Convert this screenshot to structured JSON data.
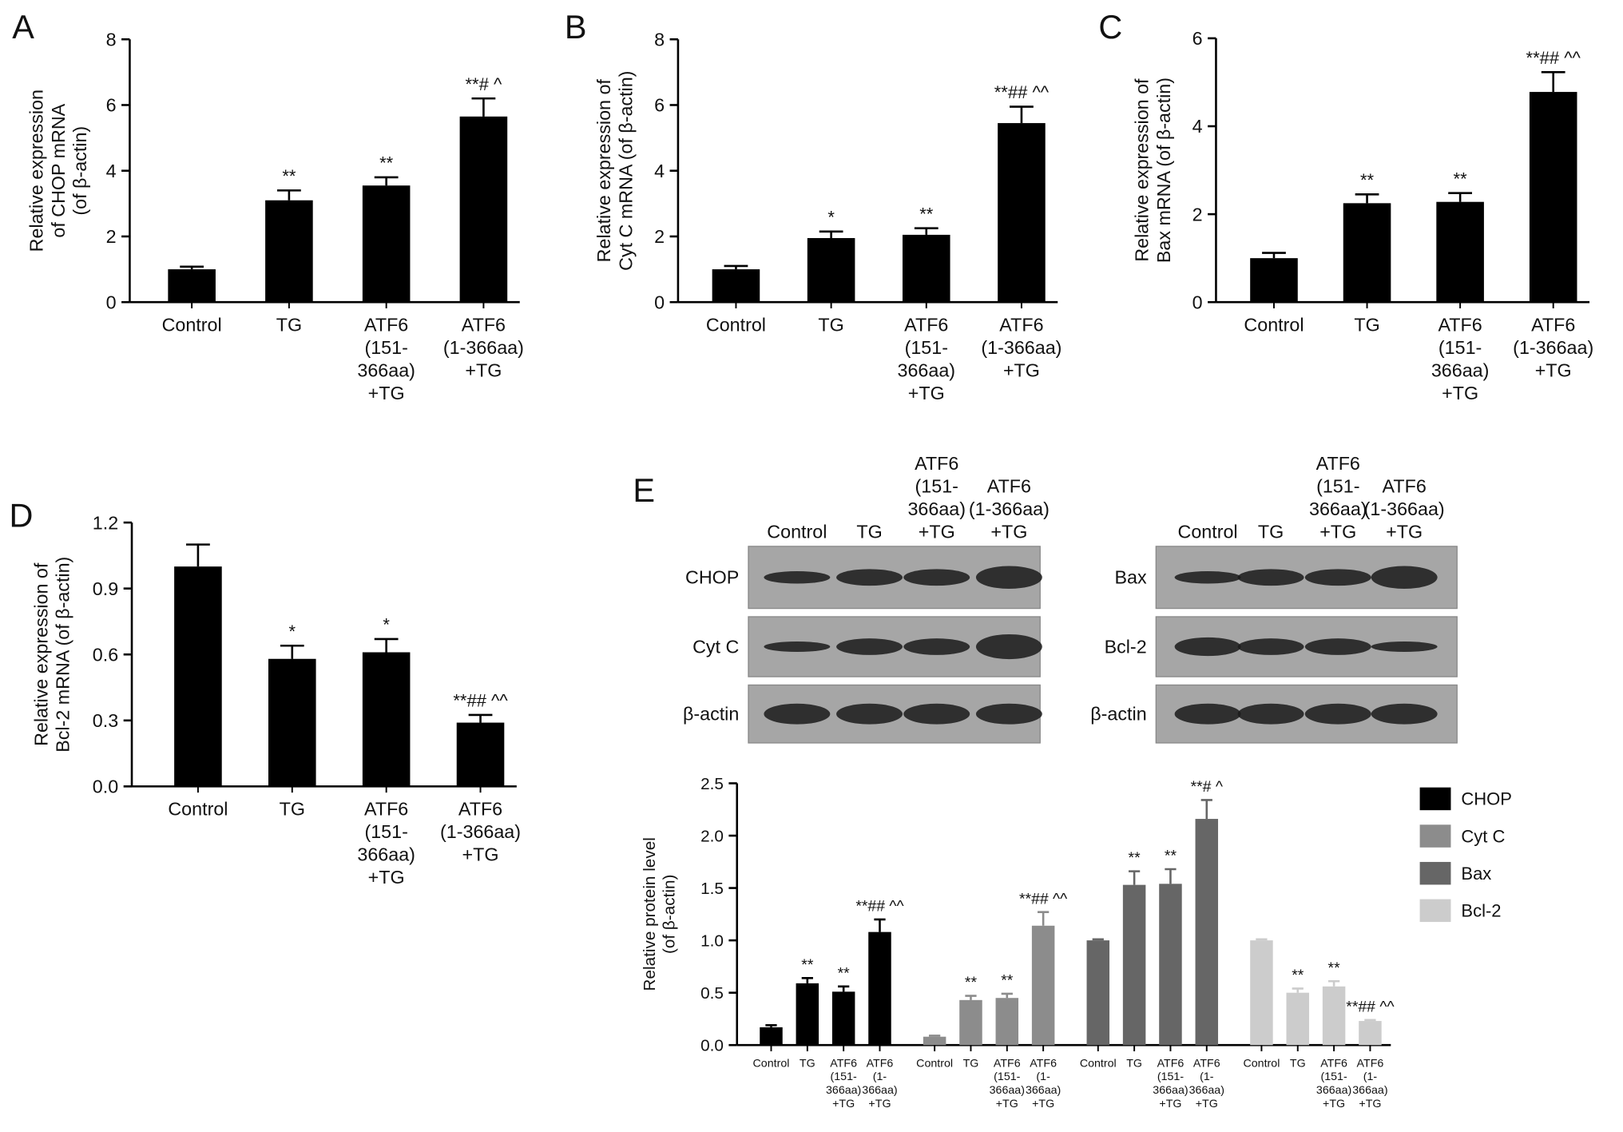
{
  "chart_data": [
    {
      "type": "bar",
      "panel": "A",
      "y_label": "Relative expression\nof CHOP mRNA\n(of β-actin)",
      "categories": [
        "Control",
        "TG",
        "ATF6\n(151-\n366aa)\n+TG",
        "ATF6\n(1-366aa)\n+TG"
      ],
      "values": [
        1.0,
        3.1,
        3.55,
        5.65
      ],
      "errors": [
        0.08,
        0.3,
        0.25,
        0.55
      ],
      "annotations": [
        null,
        "**",
        "**",
        "**# ^"
      ],
      "color": "#000000",
      "ylim": [
        0,
        8
      ],
      "yticks": [
        0,
        2,
        4,
        6,
        8
      ]
    },
    {
      "type": "bar",
      "panel": "B",
      "y_label": "Relative expression of\nCyt C mRNA (of β-actin)",
      "categories": [
        "Control",
        "TG",
        "ATF6\n(151-\n366aa)\n+TG",
        "ATF6\n(1-366aa)\n+TG"
      ],
      "values": [
        1.0,
        1.95,
        2.05,
        5.45
      ],
      "errors": [
        0.1,
        0.2,
        0.2,
        0.5
      ],
      "annotations": [
        null,
        "*",
        "**",
        "**## ^^"
      ],
      "color": "#000000",
      "ylim": [
        0,
        8
      ],
      "yticks": [
        0,
        2,
        4,
        6,
        8
      ]
    },
    {
      "type": "bar",
      "panel": "C",
      "y_label": "Relative expression of\nBax mRNA (of β-actin)",
      "categories": [
        "Control",
        "TG",
        "ATF6\n(151-\n366aa)\n+TG",
        "ATF6\n(1-366aa)\n+TG"
      ],
      "values": [
        1.0,
        2.25,
        2.28,
        4.78
      ],
      "errors": [
        0.12,
        0.2,
        0.2,
        0.45
      ],
      "annotations": [
        null,
        "**",
        "**",
        "**## ^^"
      ],
      "color": "#000000",
      "ylim": [
        0,
        6
      ],
      "yticks": [
        0,
        2,
        4,
        6
      ]
    },
    {
      "type": "bar",
      "panel": "D",
      "y_label": "Relative expression of\nBcl-2 mRNA (of β-actin)",
      "categories": [
        "Control",
        "TG",
        "ATF6\n(151-\n366aa)\n+TG",
        "ATF6\n(1-366aa)\n+TG"
      ],
      "values": [
        1.0,
        0.58,
        0.61,
        0.29
      ],
      "errors": [
        0.1,
        0.06,
        0.06,
        0.035
      ],
      "annotations": [
        null,
        "*",
        "*",
        "**## ^^"
      ],
      "color": "#000000",
      "ylim": [
        0,
        1.2
      ],
      "yticks": [
        {
          "value": 0,
          "label": "0.0"
        },
        0.3,
        0.6,
        0.9,
        1.2
      ]
    },
    {
      "type": "grouped_bar",
      "panel": "E",
      "y_label": "Relative protein level\n(of β-actin)",
      "blots": [
        {
          "columns": [
            "Control",
            "TG",
            "ATF6\n(151-\n366aa)\n+TG",
            "ATF6\n(1-366aa)\n+TG"
          ],
          "rows": [
            "CHOP",
            "Cyt C",
            "β-actin"
          ]
        },
        {
          "columns": [
            "Control",
            "TG",
            "ATF6\n(151-\n366aa)\n+TG",
            "ATF6\n(1-366aa)\n+TG"
          ],
          "rows": [
            "Bax",
            "Bcl-2",
            "β-actin"
          ]
        }
      ],
      "categories": [
        "Control",
        "TG",
        "ATF6\n(151-\n366aa)\n+TG",
        "ATF6\n(1-\n366aa)\n+TG"
      ],
      "series": [
        {
          "name": "CHOP",
          "color": "#000000",
          "values": [
            0.17,
            0.59,
            0.51,
            1.08
          ],
          "errors": [
            0.02,
            0.05,
            0.05,
            0.12
          ],
          "annotations": [
            null,
            "**",
            "**",
            "**## ^^"
          ]
        },
        {
          "name": "Cyt C",
          "color": "#8c8c8c",
          "values": [
            0.08,
            0.43,
            0.45,
            1.14
          ],
          "errors": [
            0.01,
            0.04,
            0.04,
            0.13
          ],
          "annotations": [
            null,
            "**",
            "**",
            "**## ^^"
          ]
        },
        {
          "name": "Bax",
          "color": "#666666",
          "values": [
            1.0,
            1.53,
            1.54,
            2.16
          ],
          "errors": [
            0.01,
            0.13,
            0.14,
            0.18
          ],
          "annotations": [
            null,
            "**",
            "**",
            "**# ^"
          ]
        },
        {
          "name": "Bcl-2",
          "color": "#cccccc",
          "values": [
            1.0,
            0.5,
            0.56,
            0.23
          ],
          "errors": [
            0.01,
            0.04,
            0.05,
            0.01
          ],
          "annotations": [
            null,
            "**",
            "**",
            "**## ^^"
          ]
        }
      ],
      "ylim": [
        0,
        2.5
      ],
      "yticks": [
        {
          "value": 0,
          "label": "0.0"
        },
        0.5,
        {
          "value": 1,
          "label": "1.0"
        },
        1.5,
        {
          "value": 2,
          "label": "2.0"
        },
        2.5
      ],
      "legend": "right"
    }
  ]
}
